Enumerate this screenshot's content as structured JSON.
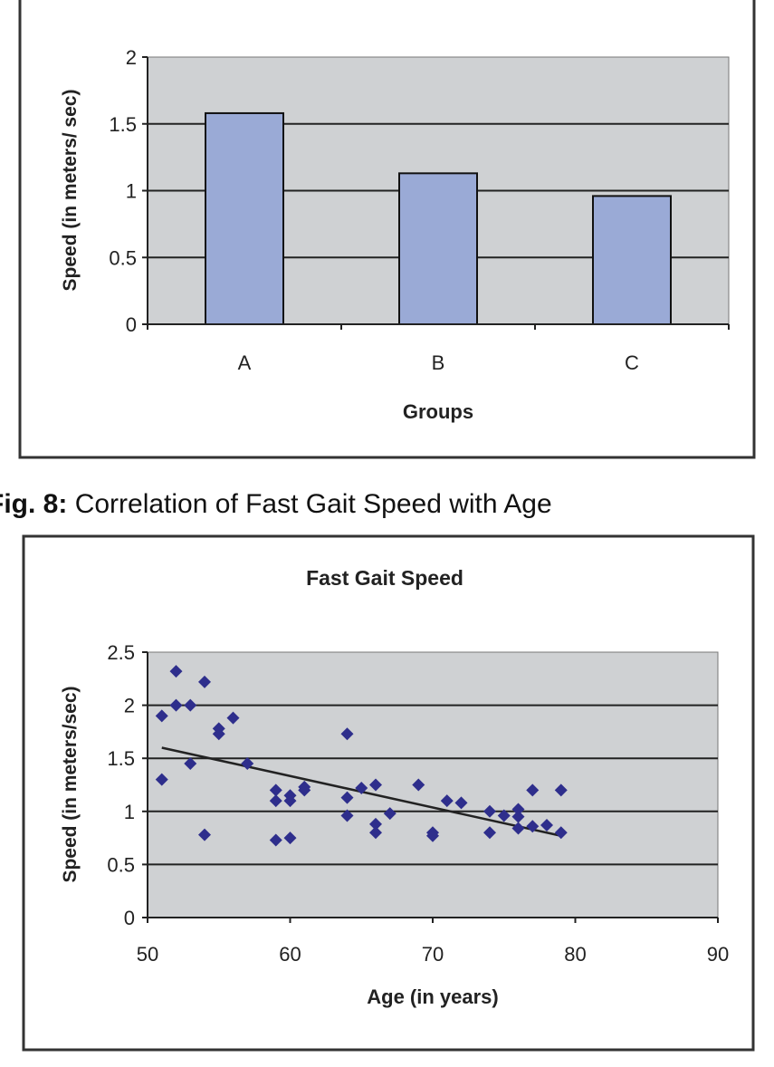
{
  "caption": {
    "label": "Fig. 8:",
    "text": "Correlation of Fast Gait Speed with Age"
  },
  "chart_data": [
    {
      "type": "bar",
      "title": "",
      "xlabel": "Groups",
      "ylabel": "Speed  (in meters/ sec)",
      "categories": [
        "A",
        "B",
        "C"
      ],
      "values": [
        1.58,
        1.13,
        0.96
      ],
      "ylim": [
        0,
        2
      ],
      "yticks": [
        "0",
        "0.5",
        "1",
        "1.5",
        "2"
      ],
      "grid": true,
      "colors": {
        "bar": "#9aaad6",
        "plot_bg": "#cfd1d3"
      }
    },
    {
      "type": "scatter",
      "title": "Fast Gait Speed",
      "xlabel": "Age (in years)",
      "ylabel": "Speed (in meters/sec)",
      "xlim": [
        50,
        90
      ],
      "ylim": [
        0,
        2.5
      ],
      "xticks": [
        "50",
        "60",
        "70",
        "80",
        "90"
      ],
      "yticks": [
        "0",
        "0.5",
        "1",
        "1.5",
        "2",
        "2.5"
      ],
      "grid": true,
      "colors": {
        "marker": "#2e2e8c",
        "plot_bg": "#cfd1d3",
        "trendline": "#222222"
      },
      "points": [
        [
          51,
          1.9
        ],
        [
          51,
          1.3
        ],
        [
          52,
          2.32
        ],
        [
          52,
          2.0
        ],
        [
          53,
          2.0
        ],
        [
          53,
          1.45
        ],
        [
          54,
          2.22
        ],
        [
          54,
          0.78
        ],
        [
          55,
          1.78
        ],
        [
          55,
          1.73
        ],
        [
          56,
          1.88
        ],
        [
          57,
          1.45
        ],
        [
          59,
          1.2
        ],
        [
          59,
          1.1
        ],
        [
          59,
          0.73
        ],
        [
          60,
          1.15
        ],
        [
          60,
          1.1
        ],
        [
          60,
          0.75
        ],
        [
          61,
          1.2
        ],
        [
          61,
          1.23
        ],
        [
          64,
          1.73
        ],
        [
          64,
          1.13
        ],
        [
          64,
          0.96
        ],
        [
          65,
          1.22
        ],
        [
          66,
          1.25
        ],
        [
          66,
          0.88
        ],
        [
          66,
          0.8
        ],
        [
          67,
          0.98
        ],
        [
          69,
          1.25
        ],
        [
          70,
          0.8
        ],
        [
          70,
          0.77
        ],
        [
          71,
          1.1
        ],
        [
          72,
          1.08
        ],
        [
          74,
          1.0
        ],
        [
          74,
          0.8
        ],
        [
          75,
          0.96
        ],
        [
          76,
          1.02
        ],
        [
          76,
          0.95
        ],
        [
          76,
          0.84
        ],
        [
          77,
          1.2
        ],
        [
          77,
          0.86
        ],
        [
          78,
          0.87
        ],
        [
          79,
          1.2
        ],
        [
          79,
          0.8
        ]
      ],
      "trendline": [
        [
          51,
          1.6
        ],
        [
          79,
          0.77
        ]
      ]
    }
  ]
}
